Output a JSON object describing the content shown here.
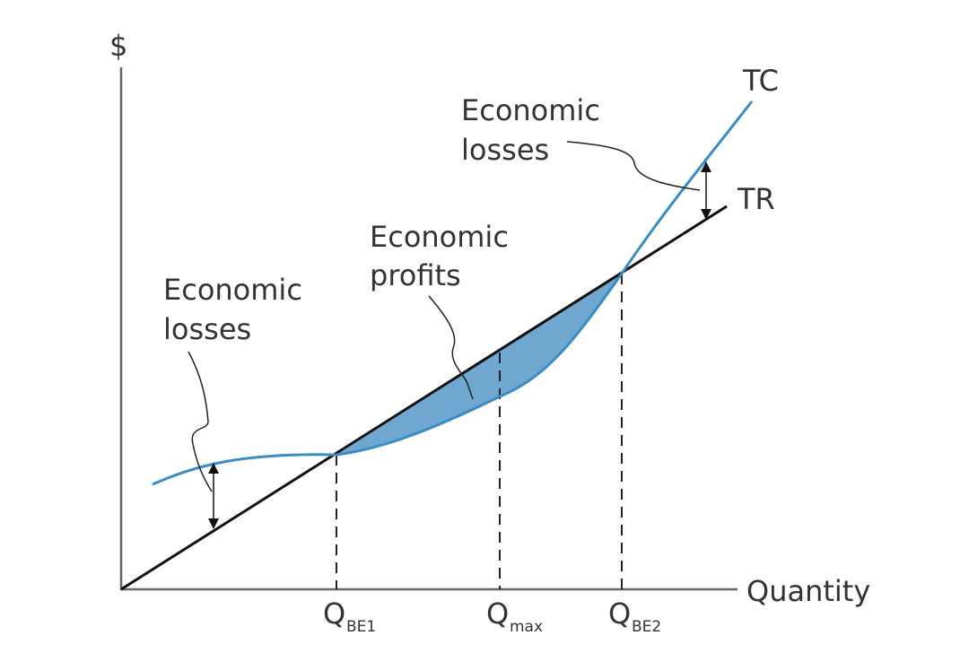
{
  "axes": {
    "y_label": "$",
    "x_label": "Quantity"
  },
  "curves": {
    "tc_label": "TC",
    "tr_label": "TR"
  },
  "annotations": {
    "left_losses": [
      "Economic",
      "losses"
    ],
    "profits": [
      "Economic",
      "profits"
    ],
    "right_losses": [
      "Economic",
      "losses"
    ]
  },
  "quantities": [
    {
      "main": "Q",
      "sub": "BE1"
    },
    {
      "main": "Q",
      "sub": "max"
    },
    {
      "main": "Q",
      "sub": "BE2"
    }
  ],
  "colors": {
    "tc": "#3a8cc4",
    "tr": "#111111",
    "profit_fill": "#6fa7d0",
    "axis": "#666666"
  }
}
